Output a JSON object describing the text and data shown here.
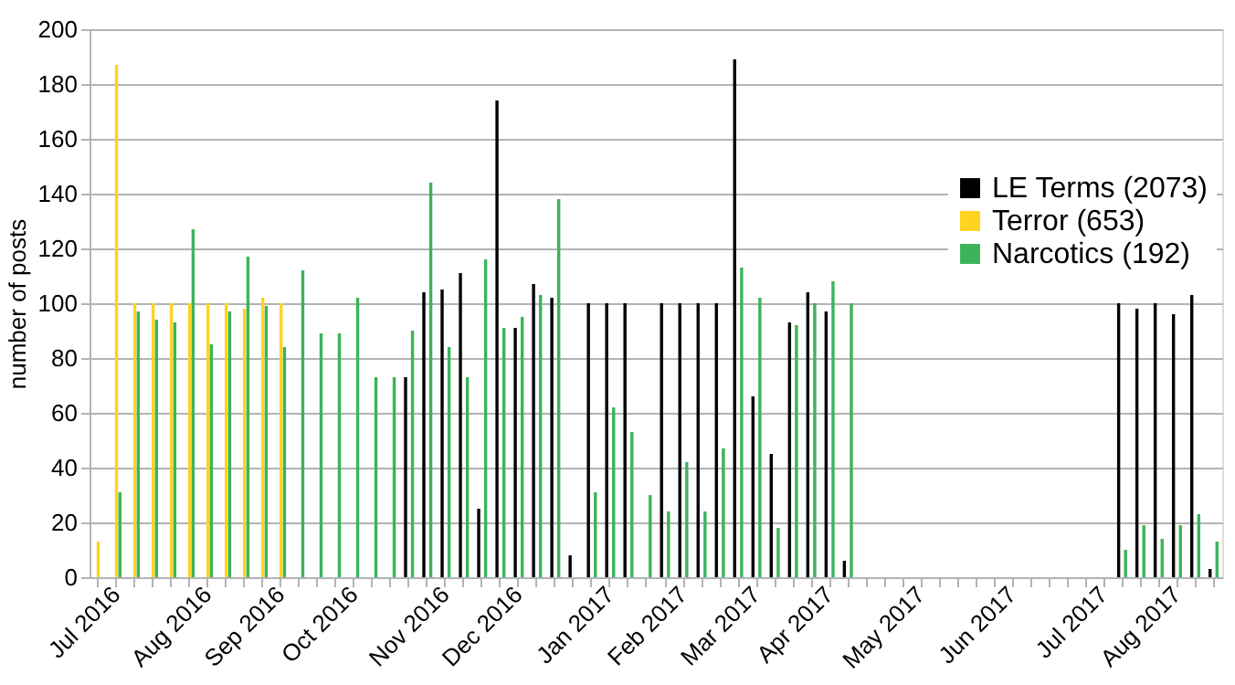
{
  "chart_data": {
    "type": "bar",
    "ylabel": "number of posts",
    "categories": [
      null,
      "Jul 2016",
      null,
      null,
      null,
      null,
      "Aug 2016",
      null,
      null,
      null,
      "Sep 2016",
      null,
      null,
      null,
      "Oct 2016",
      null,
      null,
      null,
      null,
      "Nov 2016",
      null,
      null,
      null,
      "Dec 2016",
      null,
      null,
      null,
      null,
      "Jan 2017",
      null,
      null,
      null,
      "Feb 2017",
      null,
      null,
      null,
      "Mar 2017",
      null,
      null,
      null,
      "Apr 2017",
      null,
      null,
      null,
      null,
      "May 2017",
      null,
      null,
      null,
      null,
      "Jun 2017",
      null,
      null,
      null,
      null,
      "Jul 2017",
      null,
      null,
      null,
      "Aug 2017",
      null,
      null
    ],
    "series": [
      {
        "name": "LE Terms (2073)",
        "color": "#000000",
        "values": [
          null,
          null,
          null,
          null,
          null,
          null,
          null,
          null,
          null,
          null,
          null,
          null,
          null,
          null,
          null,
          null,
          null,
          73,
          104,
          105,
          111,
          25,
          174,
          91,
          107,
          102,
          8,
          100,
          100,
          100,
          null,
          100,
          100,
          100,
          100,
          189,
          66,
          45,
          93,
          104,
          97,
          6,
          null,
          null,
          null,
          null,
          null,
          null,
          null,
          null,
          null,
          null,
          null,
          null,
          null,
          null,
          100,
          98,
          100,
          96,
          103,
          3
        ]
      },
      {
        "name": "Terror (653)",
        "color": "#ffd320",
        "values": [
          13,
          187,
          100,
          100,
          100,
          100,
          100,
          100,
          98,
          102,
          100,
          null,
          null,
          null,
          null,
          null,
          null,
          null,
          null,
          null,
          null,
          null,
          null,
          null,
          null,
          null,
          null,
          null,
          null,
          null,
          null,
          null,
          null,
          null,
          null,
          null,
          null,
          null,
          null,
          null,
          null,
          null,
          null,
          null,
          null,
          null,
          null,
          null,
          null,
          null,
          null,
          null,
          null,
          null,
          null,
          null,
          null,
          null,
          null,
          null,
          null,
          null
        ]
      },
      {
        "name": "Narcotics (192)",
        "color": "#3cb45a",
        "values": [
          null,
          31,
          97,
          94,
          93,
          127,
          85,
          97,
          117,
          99,
          84,
          112,
          89,
          89,
          102,
          73,
          73,
          90,
          144,
          84,
          73,
          116,
          91,
          95,
          103,
          138,
          null,
          31,
          62,
          53,
          30,
          24,
          42,
          24,
          47,
          113,
          102,
          18,
          92,
          100,
          108,
          100,
          null,
          null,
          null,
          null,
          null,
          null,
          null,
          null,
          null,
          null,
          null,
          null,
          null,
          null,
          10,
          19,
          14,
          19,
          23,
          13
        ]
      }
    ],
    "ylim": [
      0,
      200
    ],
    "yticks": [
      0,
      20,
      40,
      60,
      80,
      100,
      120,
      140,
      160,
      180,
      200
    ],
    "grid": "y",
    "legend": "right"
  }
}
